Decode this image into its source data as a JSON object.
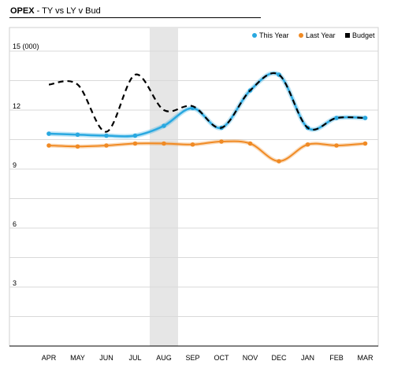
{
  "chart_data": {
    "type": "line",
    "title": "OPEX",
    "subtitle": " - TY vs LY v Bud",
    "ylabel": "15 (000)",
    "categories": [
      "APR",
      "MAY",
      "JUN",
      "JUL",
      "AUG",
      "SEP",
      "OCT",
      "NOV",
      "DEC",
      "JAN",
      "FEB",
      "MAR"
    ],
    "ylim": [
      0,
      15
    ],
    "yticks": [
      3,
      6,
      9,
      12
    ],
    "grid": true,
    "legend_position": "top-right",
    "highlight_category": "AUG",
    "highlight_color": "#e6e6e6",
    "series": [
      {
        "name": "This Year",
        "color": "#29a8e0",
        "style": "solid-glow",
        "values": [
          10.8,
          10.75,
          10.7,
          10.7,
          11.2,
          12.1,
          11.1,
          13.0,
          13.8,
          11.1,
          11.6,
          11.6
        ]
      },
      {
        "name": "Last Year",
        "color": "#f08a24",
        "style": "solid",
        "values": [
          10.2,
          10.15,
          10.2,
          10.3,
          10.3,
          10.25,
          10.4,
          10.3,
          9.4,
          10.25,
          10.2,
          10.3
        ]
      },
      {
        "name": "Budget",
        "color": "#000000",
        "style": "dashed",
        "values": [
          13.3,
          13.3,
          10.9,
          13.8,
          12.0,
          12.2,
          11.1,
          13.0,
          13.8,
          11.1,
          11.6,
          11.6
        ]
      }
    ]
  }
}
